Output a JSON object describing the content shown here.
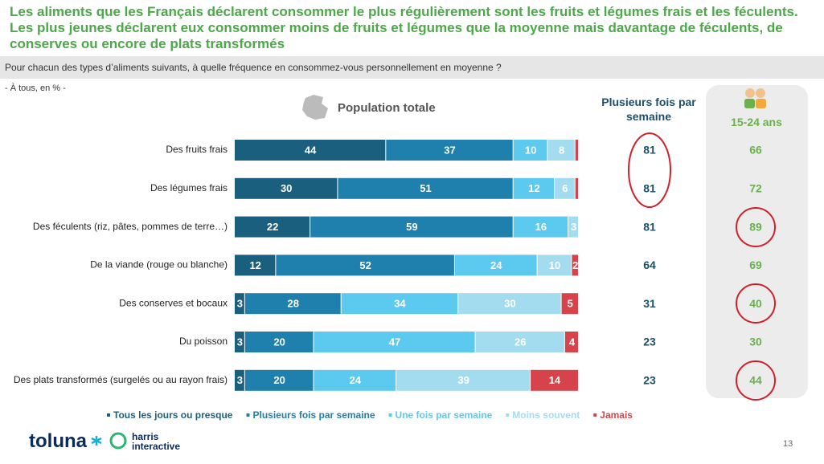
{
  "header": {
    "title": "Les aliments que les Français déclarent consommer le plus régulièrement sont les fruits et légumes frais et les féculents. Les plus jeunes déclarent eux consommer moins de fruits et légumes que la moyenne mais davantage de féculents, de conserves ou encore de plats transformés",
    "question": "Pour chacun des types d’aliments suivants, à quelle fréquence en consommez-vous personnellement en moyenne ?",
    "base": "- À tous, en % -"
  },
  "chart_data": {
    "type": "bar",
    "orientation": "horizontal",
    "stacked": true,
    "title": "Population totale",
    "categories": [
      "Des fruits frais",
      "Des légumes frais",
      "Des féculents (riz, pâtes, pommes de terre…)",
      "De la viande (rouge ou blanche)",
      "Des conserves et bocaux",
      "Du poisson",
      "Des plats transformés (surgelés ou au rayon frais)"
    ],
    "xlim": [
      0,
      100
    ],
    "series": [
      {
        "name": "Tous les jours ou presque",
        "color": "#1b5f7e",
        "values": [
          44,
          30,
          22,
          12,
          3,
          3,
          3
        ]
      },
      {
        "name": "Plusieurs fois par semaine",
        "color": "#2080ad",
        "values": [
          37,
          51,
          59,
          52,
          28,
          20,
          20
        ]
      },
      {
        "name": "Une fois par semaine",
        "color": "#5cc9ee",
        "values": [
          10,
          12,
          16,
          24,
          34,
          47,
          24
        ]
      },
      {
        "name": "Moins souvent",
        "color": "#a3dcef",
        "values": [
          8,
          6,
          3,
          10,
          30,
          26,
          39
        ]
      },
      {
        "name": "Jamais",
        "color": "#d6434a",
        "values": [
          1,
          1,
          0,
          2,
          5,
          4,
          14
        ]
      }
    ],
    "legend": "bottom"
  },
  "columns": [
    {
      "title": "Plusieurs fois par semaine",
      "values": [
        81,
        81,
        81,
        64,
        31,
        23,
        23
      ],
      "color": "#1b4f6e"
    },
    {
      "title": "15-24 ans",
      "values": [
        66,
        72,
        89,
        69,
        40,
        30,
        44
      ],
      "color": "#6ab04c"
    }
  ],
  "footer": {
    "brand": "toluna",
    "partner": "harris interactive",
    "page": "13"
  }
}
